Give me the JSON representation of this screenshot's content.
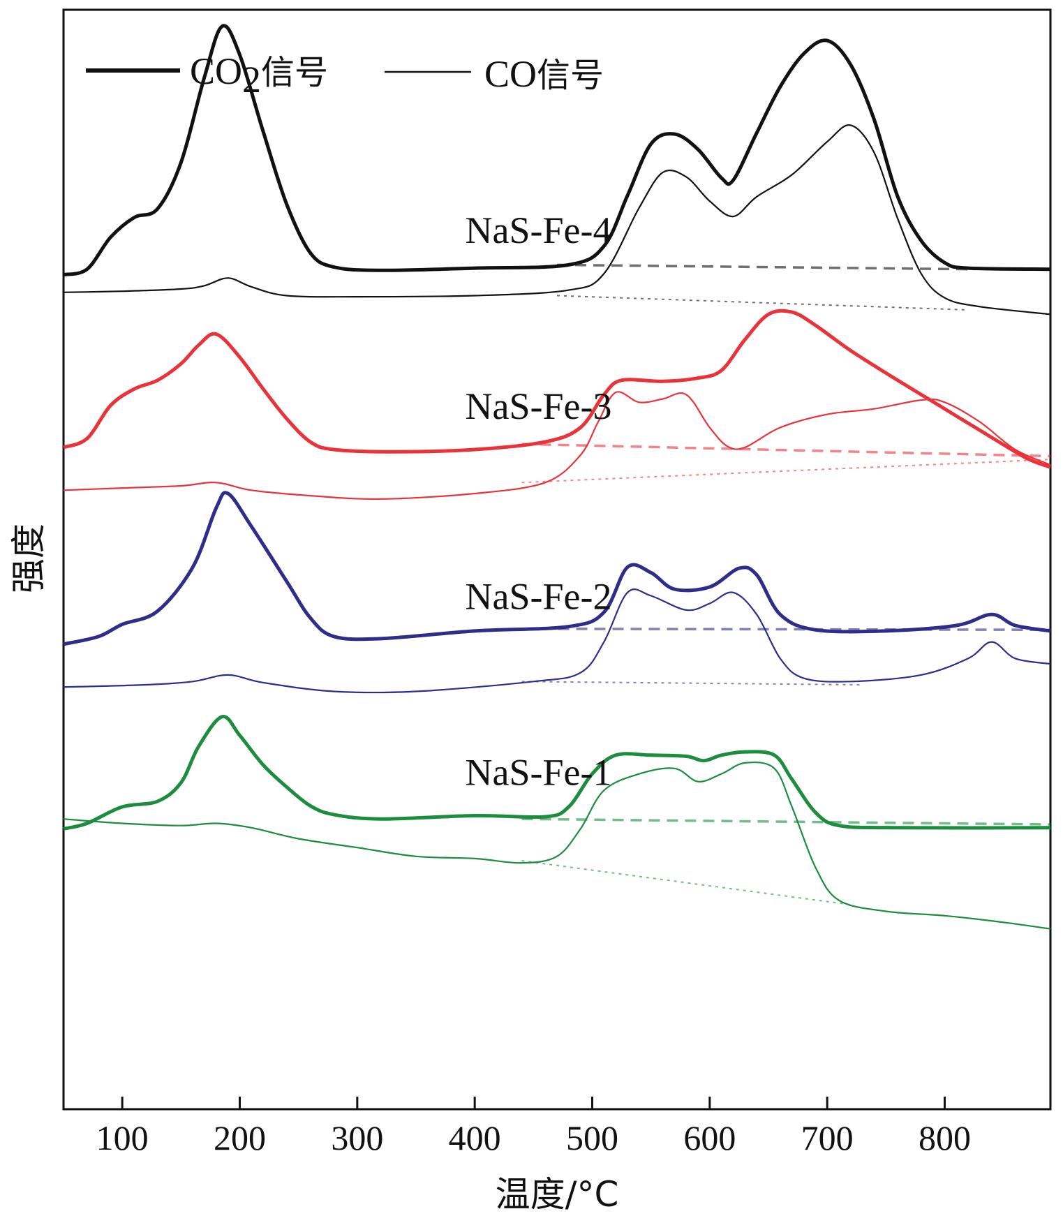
{
  "chart_data": {
    "type": "line",
    "xlabel": "温度/°C",
    "ylabel": "强度",
    "xlim": [
      50,
      890
    ],
    "ylim": [
      0,
      1
    ],
    "x_ticks": [
      100,
      200,
      300,
      400,
      500,
      600,
      700,
      800
    ],
    "x_tick_labels": [
      "100",
      "200",
      "300",
      "400",
      "500",
      "600",
      "700",
      "800"
    ],
    "legend": {
      "position": "top-left",
      "entries": [
        {
          "label_main": "CO",
          "label_sub": "2",
          "label_suffix": "信号",
          "style": "thick"
        },
        {
          "label_main": "CO",
          "label_sub": "",
          "label_suffix": "信号",
          "style": "thin"
        }
      ]
    },
    "samples": [
      {
        "name": "NaS-Fe-4",
        "color": "#111111",
        "label_anchor": [
          380,
          0.788
        ],
        "co2": [
          [
            50,
            0.759
          ],
          [
            70,
            0.764
          ],
          [
            90,
            0.793
          ],
          [
            110,
            0.811
          ],
          [
            130,
            0.819
          ],
          [
            150,
            0.861
          ],
          [
            170,
            0.939
          ],
          [
            185,
            0.985
          ],
          [
            200,
            0.959
          ],
          [
            220,
            0.889
          ],
          [
            240,
            0.823
          ],
          [
            260,
            0.779
          ],
          [
            280,
            0.766
          ],
          [
            320,
            0.763
          ],
          [
            400,
            0.765
          ],
          [
            480,
            0.768
          ],
          [
            510,
            0.785
          ],
          [
            530,
            0.831
          ],
          [
            550,
            0.878
          ],
          [
            570,
            0.887
          ],
          [
            590,
            0.873
          ],
          [
            610,
            0.847
          ],
          [
            620,
            0.845
          ],
          [
            640,
            0.888
          ],
          [
            660,
            0.93
          ],
          [
            680,
            0.96
          ],
          [
            700,
            0.972
          ],
          [
            720,
            0.95
          ],
          [
            740,
            0.9
          ],
          [
            760,
            0.83
          ],
          [
            780,
            0.79
          ],
          [
            800,
            0.77
          ],
          [
            820,
            0.765
          ],
          [
            890,
            0.764
          ]
        ],
        "co": [
          [
            50,
            0.743
          ],
          [
            100,
            0.744
          ],
          [
            150,
            0.746
          ],
          [
            170,
            0.749
          ],
          [
            190,
            0.756
          ],
          [
            210,
            0.748
          ],
          [
            240,
            0.74
          ],
          [
            300,
            0.739
          ],
          [
            400,
            0.74
          ],
          [
            480,
            0.745
          ],
          [
            510,
            0.76
          ],
          [
            540,
            0.82
          ],
          [
            560,
            0.852
          ],
          [
            580,
            0.848
          ],
          [
            600,
            0.826
          ],
          [
            620,
            0.812
          ],
          [
            640,
            0.83
          ],
          [
            670,
            0.85
          ],
          [
            700,
            0.88
          ],
          [
            720,
            0.895
          ],
          [
            740,
            0.87
          ],
          [
            760,
            0.81
          ],
          [
            780,
            0.76
          ],
          [
            800,
            0.738
          ],
          [
            830,
            0.73
          ],
          [
            890,
            0.723
          ]
        ],
        "co2_baseline": [
          [
            470,
            0.768
          ],
          [
            820,
            0.764
          ]
        ],
        "co_baseline": [
          [
            470,
            0.74
          ],
          [
            820,
            0.727
          ]
        ]
      },
      {
        "name": "NaS-Fe-3",
        "color": "#e8333a",
        "label_anchor": [
          380,
          0.628
        ],
        "co2": [
          [
            50,
            0.602
          ],
          [
            70,
            0.61
          ],
          [
            90,
            0.64
          ],
          [
            110,
            0.655
          ],
          [
            130,
            0.663
          ],
          [
            150,
            0.678
          ],
          [
            165,
            0.695
          ],
          [
            180,
            0.705
          ],
          [
            200,
            0.684
          ],
          [
            220,
            0.655
          ],
          [
            240,
            0.628
          ],
          [
            260,
            0.607
          ],
          [
            280,
            0.6
          ],
          [
            330,
            0.598
          ],
          [
            400,
            0.6
          ],
          [
            460,
            0.607
          ],
          [
            490,
            0.62
          ],
          [
            510,
            0.65
          ],
          [
            525,
            0.663
          ],
          [
            560,
            0.662
          ],
          [
            590,
            0.665
          ],
          [
            610,
            0.672
          ],
          [
            630,
            0.7
          ],
          [
            650,
            0.723
          ],
          [
            670,
            0.725
          ],
          [
            690,
            0.713
          ],
          [
            720,
            0.69
          ],
          [
            760,
            0.663
          ],
          [
            800,
            0.637
          ],
          [
            840,
            0.611
          ],
          [
            870,
            0.592
          ],
          [
            890,
            0.584
          ]
        ],
        "co": [
          [
            50,
            0.563
          ],
          [
            100,
            0.565
          ],
          [
            150,
            0.567
          ],
          [
            180,
            0.57
          ],
          [
            210,
            0.563
          ],
          [
            260,
            0.558
          ],
          [
            320,
            0.555
          ],
          [
            400,
            0.56
          ],
          [
            460,
            0.57
          ],
          [
            490,
            0.595
          ],
          [
            505,
            0.625
          ],
          [
            520,
            0.652
          ],
          [
            540,
            0.643
          ],
          [
            560,
            0.646
          ],
          [
            580,
            0.65
          ],
          [
            600,
            0.62
          ],
          [
            615,
            0.603
          ],
          [
            630,
            0.602
          ],
          [
            660,
            0.62
          ],
          [
            700,
            0.632
          ],
          [
            740,
            0.637
          ],
          [
            780,
            0.645
          ],
          [
            800,
            0.643
          ],
          [
            830,
            0.625
          ],
          [
            860,
            0.6
          ],
          [
            890,
            0.586
          ]
        ],
        "co2_baseline": [
          [
            440,
            0.605
          ],
          [
            890,
            0.594
          ]
        ],
        "co_baseline": [
          [
            440,
            0.57
          ],
          [
            890,
            0.591
          ]
        ]
      },
      {
        "name": "NaS-Fe-2",
        "color": "#2e2e8a",
        "label_anchor": [
          380,
          0.455
        ],
        "co2": [
          [
            50,
            0.423
          ],
          [
            80,
            0.43
          ],
          [
            100,
            0.441
          ],
          [
            130,
            0.453
          ],
          [
            160,
            0.493
          ],
          [
            180,
            0.547
          ],
          [
            190,
            0.56
          ],
          [
            210,
            0.53
          ],
          [
            240,
            0.48
          ],
          [
            260,
            0.447
          ],
          [
            280,
            0.43
          ],
          [
            320,
            0.428
          ],
          [
            400,
            0.435
          ],
          [
            480,
            0.439
          ],
          [
            510,
            0.452
          ],
          [
            530,
            0.493
          ],
          [
            550,
            0.488
          ],
          [
            570,
            0.473
          ],
          [
            600,
            0.475
          ],
          [
            625,
            0.492
          ],
          [
            640,
            0.486
          ],
          [
            660,
            0.45
          ],
          [
            690,
            0.436
          ],
          [
            750,
            0.435
          ],
          [
            810,
            0.44
          ],
          [
            840,
            0.45
          ],
          [
            860,
            0.44
          ],
          [
            890,
            0.435
          ]
        ],
        "co": [
          [
            50,
            0.384
          ],
          [
            120,
            0.386
          ],
          [
            160,
            0.389
          ],
          [
            190,
            0.395
          ],
          [
            220,
            0.388
          ],
          [
            280,
            0.38
          ],
          [
            350,
            0.38
          ],
          [
            450,
            0.389
          ],
          [
            490,
            0.397
          ],
          [
            510,
            0.425
          ],
          [
            530,
            0.47
          ],
          [
            550,
            0.467
          ],
          [
            580,
            0.454
          ],
          [
            600,
            0.46
          ],
          [
            620,
            0.47
          ],
          [
            640,
            0.45
          ],
          [
            660,
            0.41
          ],
          [
            680,
            0.392
          ],
          [
            720,
            0.389
          ],
          [
            780,
            0.395
          ],
          [
            820,
            0.41
          ],
          [
            840,
            0.425
          ],
          [
            860,
            0.41
          ],
          [
            890,
            0.405
          ]
        ],
        "co2_baseline": [
          [
            440,
            0.437
          ],
          [
            890,
            0.436
          ]
        ],
        "co_baseline": [
          [
            440,
            0.389
          ],
          [
            730,
            0.386
          ]
        ]
      },
      {
        "name": "NaS-Fe-1",
        "color": "#1c8d3f",
        "label_anchor": [
          380,
          0.295
        ],
        "co2": [
          [
            50,
            0.255
          ],
          [
            70,
            0.26
          ],
          [
            100,
            0.275
          ],
          [
            130,
            0.28
          ],
          [
            150,
            0.297
          ],
          [
            165,
            0.33
          ],
          [
            185,
            0.357
          ],
          [
            200,
            0.34
          ],
          [
            220,
            0.313
          ],
          [
            240,
            0.293
          ],
          [
            260,
            0.276
          ],
          [
            280,
            0.268
          ],
          [
            320,
            0.264
          ],
          [
            400,
            0.267
          ],
          [
            460,
            0.266
          ],
          [
            480,
            0.275
          ],
          [
            500,
            0.305
          ],
          [
            520,
            0.322
          ],
          [
            550,
            0.322
          ],
          [
            580,
            0.321
          ],
          [
            595,
            0.317
          ],
          [
            610,
            0.322
          ],
          [
            630,
            0.325
          ],
          [
            655,
            0.322
          ],
          [
            670,
            0.3
          ],
          [
            690,
            0.27
          ],
          [
            710,
            0.258
          ],
          [
            760,
            0.256
          ],
          [
            890,
            0.256
          ]
        ],
        "co": [
          [
            50,
            0.264
          ],
          [
            100,
            0.26
          ],
          [
            150,
            0.258
          ],
          [
            180,
            0.26
          ],
          [
            210,
            0.256
          ],
          [
            250,
            0.246
          ],
          [
            300,
            0.238
          ],
          [
            350,
            0.23
          ],
          [
            400,
            0.228
          ],
          [
            440,
            0.224
          ],
          [
            470,
            0.23
          ],
          [
            490,
            0.255
          ],
          [
            510,
            0.29
          ],
          [
            540,
            0.305
          ],
          [
            570,
            0.31
          ],
          [
            590,
            0.298
          ],
          [
            610,
            0.305
          ],
          [
            630,
            0.315
          ],
          [
            655,
            0.31
          ],
          [
            670,
            0.275
          ],
          [
            690,
            0.22
          ],
          [
            710,
            0.19
          ],
          [
            750,
            0.18
          ],
          [
            800,
            0.176
          ],
          [
            850,
            0.17
          ],
          [
            890,
            0.164
          ]
        ],
        "co2_baseline": [
          [
            440,
            0.264
          ],
          [
            890,
            0.259
          ]
        ],
        "co_baseline": [
          [
            440,
            0.226
          ],
          [
            720,
            0.186
          ]
        ]
      }
    ]
  }
}
